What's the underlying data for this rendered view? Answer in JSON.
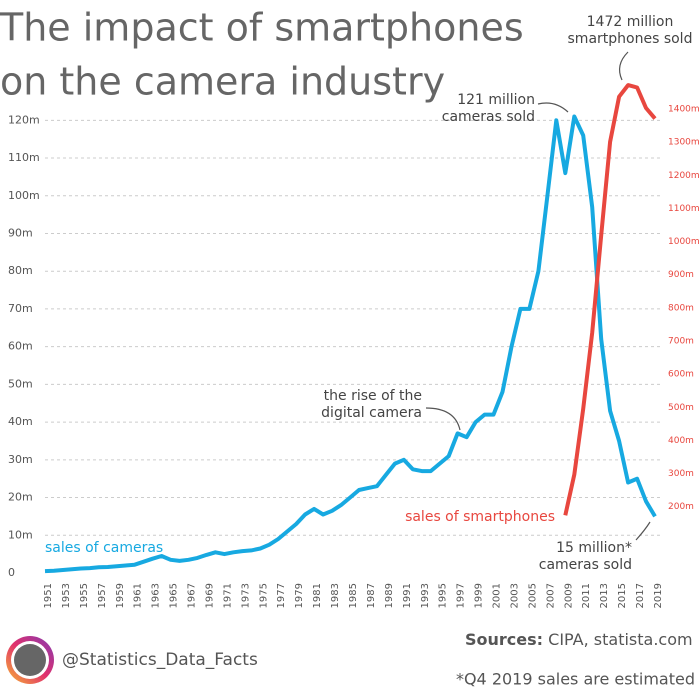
{
  "chart_data": {
    "type": "line",
    "title": [
      "The impact of smartphones",
      "on the camera industry"
    ],
    "x": [
      1951,
      1952,
      1953,
      1954,
      1955,
      1956,
      1957,
      1958,
      1959,
      1960,
      1961,
      1962,
      1963,
      1964,
      1965,
      1966,
      1967,
      1968,
      1969,
      1970,
      1971,
      1972,
      1973,
      1974,
      1975,
      1976,
      1977,
      1978,
      1979,
      1980,
      1981,
      1982,
      1983,
      1984,
      1985,
      1986,
      1987,
      1988,
      1989,
      1990,
      1991,
      1992,
      1993,
      1994,
      1995,
      1996,
      1997,
      1998,
      1999,
      2000,
      2001,
      2002,
      2003,
      2004,
      2005,
      2006,
      2007,
      2008,
      2009,
      2010,
      2011,
      2012,
      2013,
      2014,
      2015,
      2016,
      2017,
      2018,
      2019
    ],
    "xlim": [
      1951,
      2019
    ],
    "xticks": [
      1951,
      1953,
      1955,
      1957,
      1959,
      1961,
      1963,
      1965,
      1967,
      1969,
      1971,
      1973,
      1975,
      1977,
      1979,
      1981,
      1983,
      1985,
      1987,
      1989,
      1991,
      1993,
      1995,
      1997,
      1999,
      2001,
      2003,
      2005,
      2007,
      2009,
      2011,
      2013,
      2015,
      2017,
      2019
    ],
    "ylim": [
      0,
      123
    ],
    "yticks": [
      0,
      {
        "value": 10,
        "label": "10m"
      },
      {
        "value": 20,
        "label": "20m"
      },
      {
        "value": 30,
        "label": "30m"
      },
      {
        "value": 40,
        "label": "40m"
      },
      {
        "value": 50,
        "label": "50m"
      },
      {
        "value": 60,
        "label": "60m"
      },
      {
        "value": 70,
        "label": "70m"
      },
      {
        "value": 80,
        "label": "80m"
      },
      {
        "value": 90,
        "label": "90m"
      },
      {
        "value": 100,
        "label": "100m"
      },
      {
        "value": 110,
        "label": "110m"
      },
      {
        "value": 120,
        "label": "120m"
      }
    ],
    "y2lim": [
      0,
      1400
    ],
    "y2ticks": [
      {
        "value": 200,
        "label": "200m"
      },
      {
        "value": 300,
        "label": "300m"
      },
      {
        "value": 400,
        "label": "400m"
      },
      {
        "value": 500,
        "label": "500m"
      },
      {
        "value": 600,
        "label": "600m"
      },
      {
        "value": 700,
        "label": "700m"
      },
      {
        "value": 800,
        "label": "800m"
      },
      {
        "value": 900,
        "label": "900m"
      },
      {
        "value": 1000,
        "label": "1000m"
      },
      {
        "value": 1100,
        "label": "1100m"
      },
      {
        "value": 1200,
        "label": "1200m"
      },
      {
        "value": 1300,
        "label": "1300m"
      },
      {
        "value": 1400,
        "label": "1400m"
      }
    ],
    "grid": true,
    "series": [
      {
        "name": "sales of cameras",
        "color": "#17a9e1",
        "values": [
          0.5,
          0.6,
          0.8,
          1,
          1.2,
          1.3,
          1.5,
          1.6,
          1.8,
          2,
          2.2,
          3,
          3.8,
          4.5,
          3.5,
          3.2,
          3.5,
          4,
          4.8,
          5.5,
          5,
          5.5,
          5.8,
          6,
          6.5,
          7.5,
          9,
          11,
          13,
          15.5,
          17,
          15.5,
          16.5,
          18,
          20,
          22,
          22.5,
          23,
          26,
          29,
          30,
          27.5,
          27,
          27,
          29,
          31,
          37,
          36,
          40,
          42,
          42,
          48,
          60,
          70,
          70,
          80,
          100,
          120,
          106,
          121,
          116,
          97,
          62,
          43,
          35,
          24,
          25,
          19,
          15
        ]
      },
      {
        "name": "sales of smartphones",
        "color": "#e8473f",
        "axis": "y2",
        "values": [
          null,
          null,
          null,
          null,
          null,
          null,
          null,
          null,
          null,
          null,
          null,
          null,
          null,
          null,
          null,
          null,
          null,
          null,
          null,
          null,
          null,
          null,
          null,
          null,
          null,
          null,
          null,
          null,
          null,
          null,
          null,
          null,
          null,
          null,
          null,
          null,
          null,
          null,
          null,
          null,
          null,
          null,
          null,
          null,
          null,
          null,
          null,
          null,
          null,
          null,
          null,
          null,
          null,
          null,
          null,
          null,
          null,
          null,
          174,
          297,
          495,
          725,
          1019,
          1301,
          1437,
          1472,
          1465,
          1403,
          1371
        ]
      }
    ],
    "annotations": [
      {
        "lines": [
          "121 million",
          "cameras sold"
        ]
      },
      {
        "lines": [
          "1472 million",
          "smartphones sold"
        ]
      },
      {
        "lines": [
          "the rise of the",
          "digital camera"
        ]
      },
      {
        "lines": [
          "15 million*",
          "cameras sold"
        ]
      }
    ]
  },
  "footer": {
    "handle": "@Statistics_Data_Facts",
    "sources_label": "Sources:",
    "sources": "CIPA, statista.com",
    "note": "*Q4 2019 sales are estimated"
  }
}
